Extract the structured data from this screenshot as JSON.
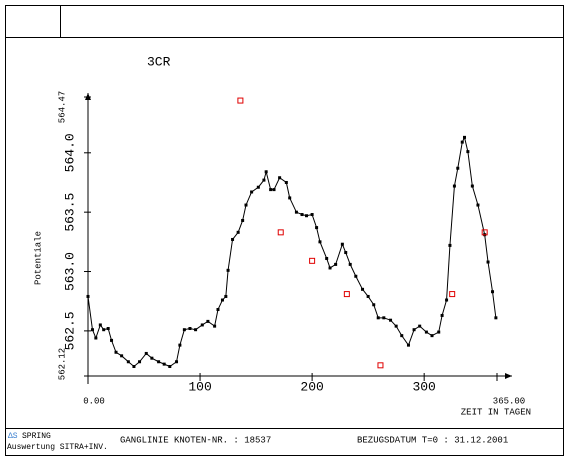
{
  "chart_data": {
    "type": "line",
    "title": "3CR",
    "y_label": "Potentiale",
    "x_label": "ZEIT IN TAGEN",
    "xlim": [
      0,
      365
    ],
    "xlim_labels": [
      "0.00",
      "365.00"
    ],
    "xticks": [
      100,
      200,
      300
    ],
    "ylim": [
      562.12,
      564.47
    ],
    "ylim_labels": [
      "562.12",
      "564.47"
    ],
    "yticks": [
      {
        "value": 562.5,
        "label": "562.5"
      },
      {
        "value": 563,
        "label": "563.0"
      },
      {
        "value": 563.5,
        "label": "563.5"
      },
      {
        "value": 564,
        "label": "564.0"
      }
    ],
    "series": [
      {
        "color": "#000000",
        "x": [
          0,
          4,
          7,
          11,
          14,
          18,
          21,
          25,
          30,
          36,
          41,
          46,
          52,
          57,
          63,
          68,
          73,
          79,
          82,
          86,
          91,
          96,
          102,
          107,
          113,
          116,
          120,
          123,
          125,
          129,
          134,
          138,
          141,
          146,
          152,
          157,
          159,
          163,
          166,
          171,
          177,
          180,
          186,
          191,
          195,
          200,
          204,
          207,
          213,
          216,
          221,
          227,
          230,
          234,
          239,
          245,
          250,
          255,
          259,
          264,
          270,
          275,
          280,
          286,
          291,
          296,
          302,
          307,
          313,
          316,
          320,
          323,
          327,
          330,
          334,
          336,
          339,
          343,
          348,
          354,
          357,
          361,
          364
        ],
        "values": [
          562.79,
          562.51,
          562.44,
          562.55,
          562.51,
          562.52,
          562.42,
          562.32,
          562.29,
          562.24,
          562.2,
          562.24,
          562.31,
          562.27,
          562.24,
          562.22,
          562.2,
          562.24,
          562.38,
          562.51,
          562.52,
          562.51,
          562.55,
          562.58,
          562.54,
          562.68,
          562.76,
          562.79,
          563.01,
          563.27,
          563.33,
          563.43,
          563.56,
          563.67,
          563.71,
          563.77,
          563.84,
          563.69,
          563.69,
          563.79,
          563.75,
          563.62,
          563.5,
          563.48,
          563.47,
          563.48,
          563.37,
          563.25,
          563.11,
          563.03,
          563.06,
          563.23,
          563.16,
          563.06,
          562.96,
          562.85,
          562.79,
          562.72,
          562.61,
          562.61,
          562.59,
          562.54,
          562.46,
          562.38,
          562.51,
          562.54,
          562.49,
          562.46,
          562.49,
          562.63,
          562.76,
          563.22,
          563.72,
          563.87,
          564.09,
          564.13,
          564.01,
          563.72,
          563.56,
          563.31,
          563.08,
          562.83,
          562.61
        ]
      },
      {
        "type": "scatter",
        "color": "#e00000",
        "x": [
          136,
          172,
          200,
          231,
          261,
          325,
          354
        ],
        "values": [
          564.44,
          563.33,
          563.09,
          562.81,
          562.21,
          562.81,
          563.33
        ]
      }
    ]
  },
  "footer": {
    "logo": "ΔS",
    "program": "SPRING",
    "subtitle": "Auswertung SITRA+INV.",
    "caption": "GANGLINIE KNOTEN-NR. : 18537",
    "date": "BEZUGSDATUM T=0 : 31.12.2001"
  }
}
